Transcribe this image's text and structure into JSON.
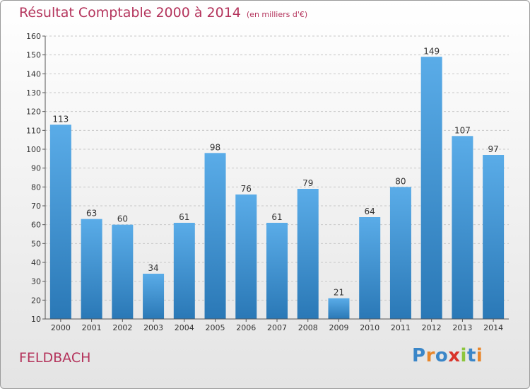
{
  "header": {
    "title": "Résultat Comptable 2000 à 2014",
    "subtitle": "(en milliers d'€)"
  },
  "commune": "FELDBACH",
  "logo": {
    "text": "Proxiti",
    "letters": [
      {
        "ch": "P",
        "color": "#3a86c8"
      },
      {
        "ch": "r",
        "color": "#e8862a"
      },
      {
        "ch": "o",
        "color": "#3a86c8"
      },
      {
        "ch": "x",
        "color": "#d9342b"
      },
      {
        "ch": "i",
        "color": "#8cc63e"
      },
      {
        "ch": "t",
        "color": "#3a86c8"
      },
      {
        "ch": "i",
        "color": "#e8862a"
      }
    ]
  },
  "colors": {
    "bar_top": "#5aace8",
    "bar_bottom": "#2a78b6",
    "title": "#b4345c"
  },
  "chart_data": {
    "type": "bar",
    "title": "Résultat Comptable 2000 à 2014",
    "subtitle": "(en milliers d'€)",
    "categories": [
      "2000",
      "2001",
      "2002",
      "2003",
      "2004",
      "2005",
      "2006",
      "2007",
      "2008",
      "2009",
      "2010",
      "2011",
      "2012",
      "2013",
      "2014"
    ],
    "values": [
      113,
      63,
      60,
      34,
      61,
      98,
      76,
      61,
      79,
      21,
      64,
      80,
      149,
      107,
      97
    ],
    "ylim": [
      10,
      160
    ],
    "yticks": [
      10,
      20,
      30,
      40,
      50,
      60,
      70,
      80,
      90,
      100,
      110,
      120,
      130,
      140,
      150,
      160
    ],
    "grid": true,
    "grid_axis": "y"
  }
}
